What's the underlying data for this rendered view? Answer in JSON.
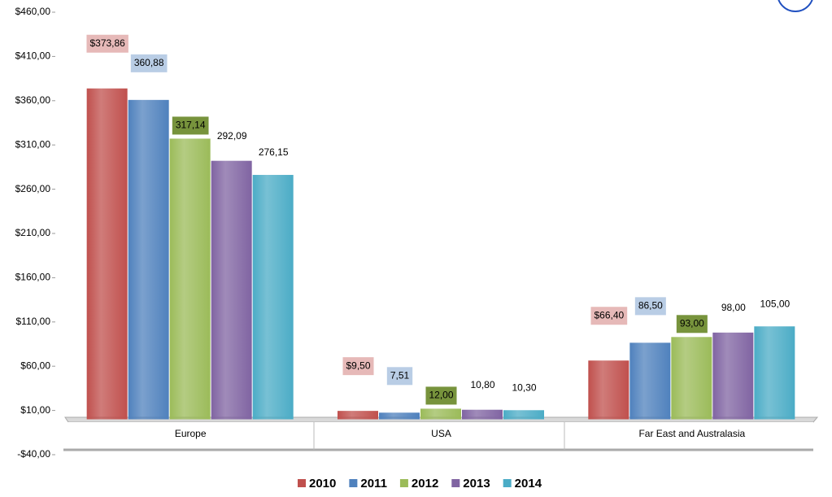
{
  "chart_data": {
    "type": "bar",
    "categories": [
      "Europe",
      "USA",
      "Far East and Australasia"
    ],
    "series": [
      {
        "name": "2010",
        "color": "#c0504d",
        "label_background": "#e6b9b8",
        "values": [
          373.86,
          9.5,
          66.4
        ],
        "value_labels": [
          "$373,86",
          "$9,50",
          "$66,40"
        ]
      },
      {
        "name": "2011",
        "color": "#4f81bd",
        "label_background": "#b9cde5",
        "values": [
          360.88,
          7.51,
          86.5
        ],
        "value_labels": [
          "360,88",
          "7,51",
          "86,50"
        ]
      },
      {
        "name": "2012",
        "color": "#9bbb59",
        "label_background": "#77933c",
        "values": [
          317.14,
          12,
          93
        ],
        "value_labels": [
          "317,14",
          "12,00",
          "93,00"
        ]
      },
      {
        "name": "2013",
        "color": "#8064a2",
        "values": [
          292.09,
          10.8,
          98
        ],
        "value_labels": [
          "292,09",
          "10,80",
          "98,00"
        ]
      },
      {
        "name": "2014",
        "color": "#4bacc6",
        "values": [
          276.15,
          10.3,
          105
        ],
        "value_labels": [
          "276,15",
          "10,30",
          "105,00"
        ]
      }
    ],
    "ylim": [
      -40,
      460
    ],
    "yticks": [
      {
        "value": -40,
        "label": "-$40,00"
      },
      {
        "value": 10,
        "label": "$10,00"
      },
      {
        "value": 60,
        "label": "$60,00"
      },
      {
        "value": 110,
        "label": "$110,00"
      },
      {
        "value": 160,
        "label": "$160,00"
      },
      {
        "value": 210,
        "label": "$210,00"
      },
      {
        "value": 260,
        "label": "$260,00"
      },
      {
        "value": 310,
        "label": "$310,00"
      },
      {
        "value": 360,
        "label": "$360,00"
      },
      {
        "value": 410,
        "label": "$410,00"
      },
      {
        "value": 460,
        "label": "$460,00"
      }
    ],
    "legend": "bottom"
  }
}
